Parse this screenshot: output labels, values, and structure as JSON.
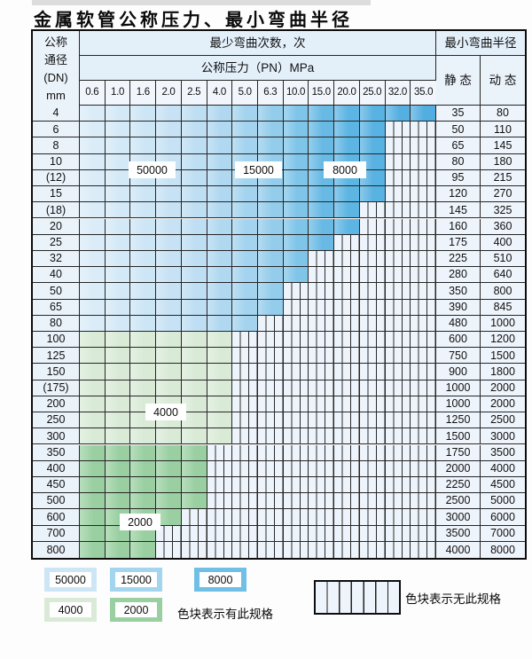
{
  "title": "金属软管公称压力、最小弯曲半径",
  "chart_data": {
    "type": "table",
    "title": "金属软管公称压力、最小弯曲半径",
    "corner_header_lines": [
      "公称",
      "通径",
      "(DN)",
      "mm"
    ],
    "headers": {
      "bend_cycles": "最少弯曲次数，次",
      "pressure": "公称压力（PN）MPa",
      "radius": "最小弯曲半径",
      "static": "静 态",
      "dynamic": "动 态"
    },
    "pressure_columns_mpa": [
      "0.6",
      "1.0",
      "1.6",
      "2.0",
      "2.5",
      "4.0",
      "5.0",
      "6.3",
      "10.0",
      "15.0",
      "20.0",
      "25.0",
      "32.0",
      "35.0"
    ],
    "cycle_region_labels": [
      "50000",
      "15000",
      "8000",
      "4000",
      "2000"
    ],
    "rows": [
      {
        "dn": "4",
        "band": "blue",
        "last_col": 13,
        "max_pn": "35.0",
        "static_radius": "35",
        "dynamic_radius": "80"
      },
      {
        "dn": "6",
        "band": "blue",
        "last_col": 11,
        "max_pn": "25.0",
        "static_radius": "50",
        "dynamic_radius": "110"
      },
      {
        "dn": "8",
        "band": "blue",
        "last_col": 11,
        "max_pn": "25.0",
        "static_radius": "65",
        "dynamic_radius": "145"
      },
      {
        "dn": "10",
        "band": "blue",
        "last_col": 11,
        "max_pn": "25.0",
        "static_radius": "80",
        "dynamic_radius": "180"
      },
      {
        "dn": "(12)",
        "band": "blue",
        "last_col": 11,
        "max_pn": "25.0",
        "static_radius": "95",
        "dynamic_radius": "215"
      },
      {
        "dn": "15",
        "band": "blue",
        "last_col": 11,
        "max_pn": "25.0",
        "static_radius": "120",
        "dynamic_radius": "270"
      },
      {
        "dn": "(18)",
        "band": "blue",
        "last_col": 10,
        "max_pn": "20.0",
        "static_radius": "145",
        "dynamic_radius": "325"
      },
      {
        "dn": "20",
        "band": "blue",
        "last_col": 10,
        "max_pn": "20.0",
        "static_radius": "160",
        "dynamic_radius": "360"
      },
      {
        "dn": "25",
        "band": "blue",
        "last_col": 9,
        "max_pn": "15.0",
        "static_radius": "175",
        "dynamic_radius": "400"
      },
      {
        "dn": "32",
        "band": "blue",
        "last_col": 8,
        "max_pn": "10.0",
        "static_radius": "225",
        "dynamic_radius": "510"
      },
      {
        "dn": "40",
        "band": "blue",
        "last_col": 8,
        "max_pn": "10.0",
        "static_radius": "280",
        "dynamic_radius": "640"
      },
      {
        "dn": "50",
        "band": "blue",
        "last_col": 7,
        "max_pn": "6.3",
        "static_radius": "350",
        "dynamic_radius": "800"
      },
      {
        "dn": "65",
        "band": "blue",
        "last_col": 7,
        "max_pn": "6.3",
        "static_radius": "390",
        "dynamic_radius": "845"
      },
      {
        "dn": "80",
        "band": "blue",
        "last_col": 6,
        "max_pn": "5.0",
        "static_radius": "480",
        "dynamic_radius": "1000"
      },
      {
        "dn": "100",
        "band": "green_light",
        "last_col": 5,
        "max_pn": "4.0",
        "static_radius": "600",
        "dynamic_radius": "1200"
      },
      {
        "dn": "125",
        "band": "green_light",
        "last_col": 5,
        "max_pn": "4.0",
        "static_radius": "750",
        "dynamic_radius": "1500"
      },
      {
        "dn": "150",
        "band": "green_light",
        "last_col": 5,
        "max_pn": "4.0",
        "static_radius": "900",
        "dynamic_radius": "1800"
      },
      {
        "dn": "(175)",
        "band": "green_light",
        "last_col": 5,
        "max_pn": "4.0",
        "static_radius": "1000",
        "dynamic_radius": "2000"
      },
      {
        "dn": "200",
        "band": "green_light",
        "last_col": 5,
        "max_pn": "4.0",
        "static_radius": "1000",
        "dynamic_radius": "2000"
      },
      {
        "dn": "250",
        "band": "green_light",
        "last_col": 5,
        "max_pn": "4.0",
        "static_radius": "1250",
        "dynamic_radius": "2500"
      },
      {
        "dn": "300",
        "band": "green_light",
        "last_col": 5,
        "max_pn": "4.0",
        "static_radius": "1500",
        "dynamic_radius": "3000"
      },
      {
        "dn": "350",
        "band": "green_dark",
        "last_col": 4,
        "max_pn": "2.5",
        "static_radius": "1750",
        "dynamic_radius": "3500"
      },
      {
        "dn": "400",
        "band": "green_dark",
        "last_col": 4,
        "max_pn": "2.5",
        "static_radius": "2000",
        "dynamic_radius": "4000"
      },
      {
        "dn": "450",
        "band": "green_dark",
        "last_col": 4,
        "max_pn": "2.5",
        "static_radius": "2250",
        "dynamic_radius": "4500"
      },
      {
        "dn": "500",
        "band": "green_dark",
        "last_col": 4,
        "max_pn": "2.5",
        "static_radius": "2500",
        "dynamic_radius": "5000"
      },
      {
        "dn": "600",
        "band": "green_dark",
        "last_col": 3,
        "max_pn": "2.0",
        "static_radius": "3000",
        "dynamic_radius": "6000"
      },
      {
        "dn": "700",
        "band": "green_dark",
        "last_col": 2,
        "max_pn": "1.6",
        "static_radius": "3500",
        "dynamic_radius": "7000"
      },
      {
        "dn": "800",
        "band": "green_dark",
        "last_col": 2,
        "max_pn": "1.6",
        "static_radius": "4000",
        "dynamic_radius": "8000"
      }
    ],
    "band_meaning": {
      "blue_50000": "PN 0.6–2.5 区",
      "blue_15000": "PN 4.0–6.3 区",
      "blue_8000": "PN 10.0–35.0 区",
      "green_4000": "DN 100–300 行",
      "green_2000": "DN 350–800 行"
    }
  },
  "legend": {
    "swatches": [
      {
        "label": "50000",
        "color": "#cde6f6"
      },
      {
        "label": "15000",
        "color": "#a3d5ef"
      },
      {
        "label": "8000",
        "color": "#6fbfe7"
      },
      {
        "label": "4000",
        "color": "#d9ebd7"
      },
      {
        "label": "2000",
        "color": "#9ad0a1"
      }
    ],
    "present_note": "色块表示有此规格",
    "absent_note": "色块表示无此规格"
  },
  "palette": {
    "blues": [
      "#daecf8",
      "#d4e9f7",
      "#cde6f6",
      "#c6e2f4",
      "#bedef3",
      "#b0d8f1",
      "#a3d3ee",
      "#94cdec",
      "#7fc5e9",
      "#68bae5",
      "#5db5e3",
      "#58b2e2",
      "#55b0e1",
      "#52aee0"
    ],
    "green_light": "#d9ebd7",
    "green_dark": "#9ad0a1",
    "empty_bg": "#eef4fb",
    "grid_line": "#262626",
    "header_bg": "#e3f0fa",
    "label_bg": "#eaf2fa"
  }
}
